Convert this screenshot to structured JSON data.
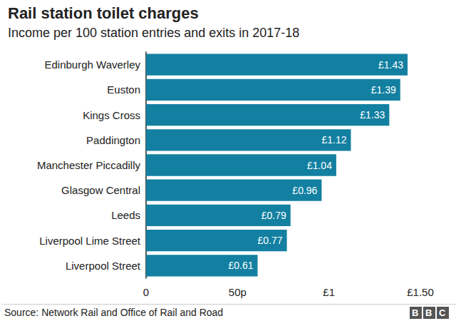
{
  "chart_data": {
    "type": "bar",
    "orientation": "horizontal",
    "title": "Rail station toilet charges",
    "subtitle": "Income per 100 station entries and exits in 2017-18",
    "categories": [
      "Edinburgh Waverley",
      "Euston",
      "Kings Cross",
      "Paddington",
      "Manchester Piccadilly",
      "Glasgow Central",
      "Leeds",
      "Liverpool Lime Street",
      "Liverpool Street"
    ],
    "values": [
      1.43,
      1.39,
      1.33,
      1.12,
      1.04,
      0.96,
      0.79,
      0.77,
      0.61
    ],
    "value_labels": [
      "£1.43",
      "£1.39",
      "£1.33",
      "£1.12",
      "£1.04",
      "£0.96",
      "£0.79",
      "£0.77",
      "£0.61"
    ],
    "data_labels": true,
    "color": "#1380a1",
    "xlim": [
      0,
      1.5
    ],
    "xticks": [
      0,
      {
        "value": 0.5,
        "label": "50p"
      },
      {
        "value": 1,
        "label": "£1"
      },
      {
        "value": 1.5,
        "label": "£1.50"
      }
    ],
    "grid": false,
    "source": "Source: Network Rail and Office of Rail and Road",
    "logo": "BBC"
  }
}
